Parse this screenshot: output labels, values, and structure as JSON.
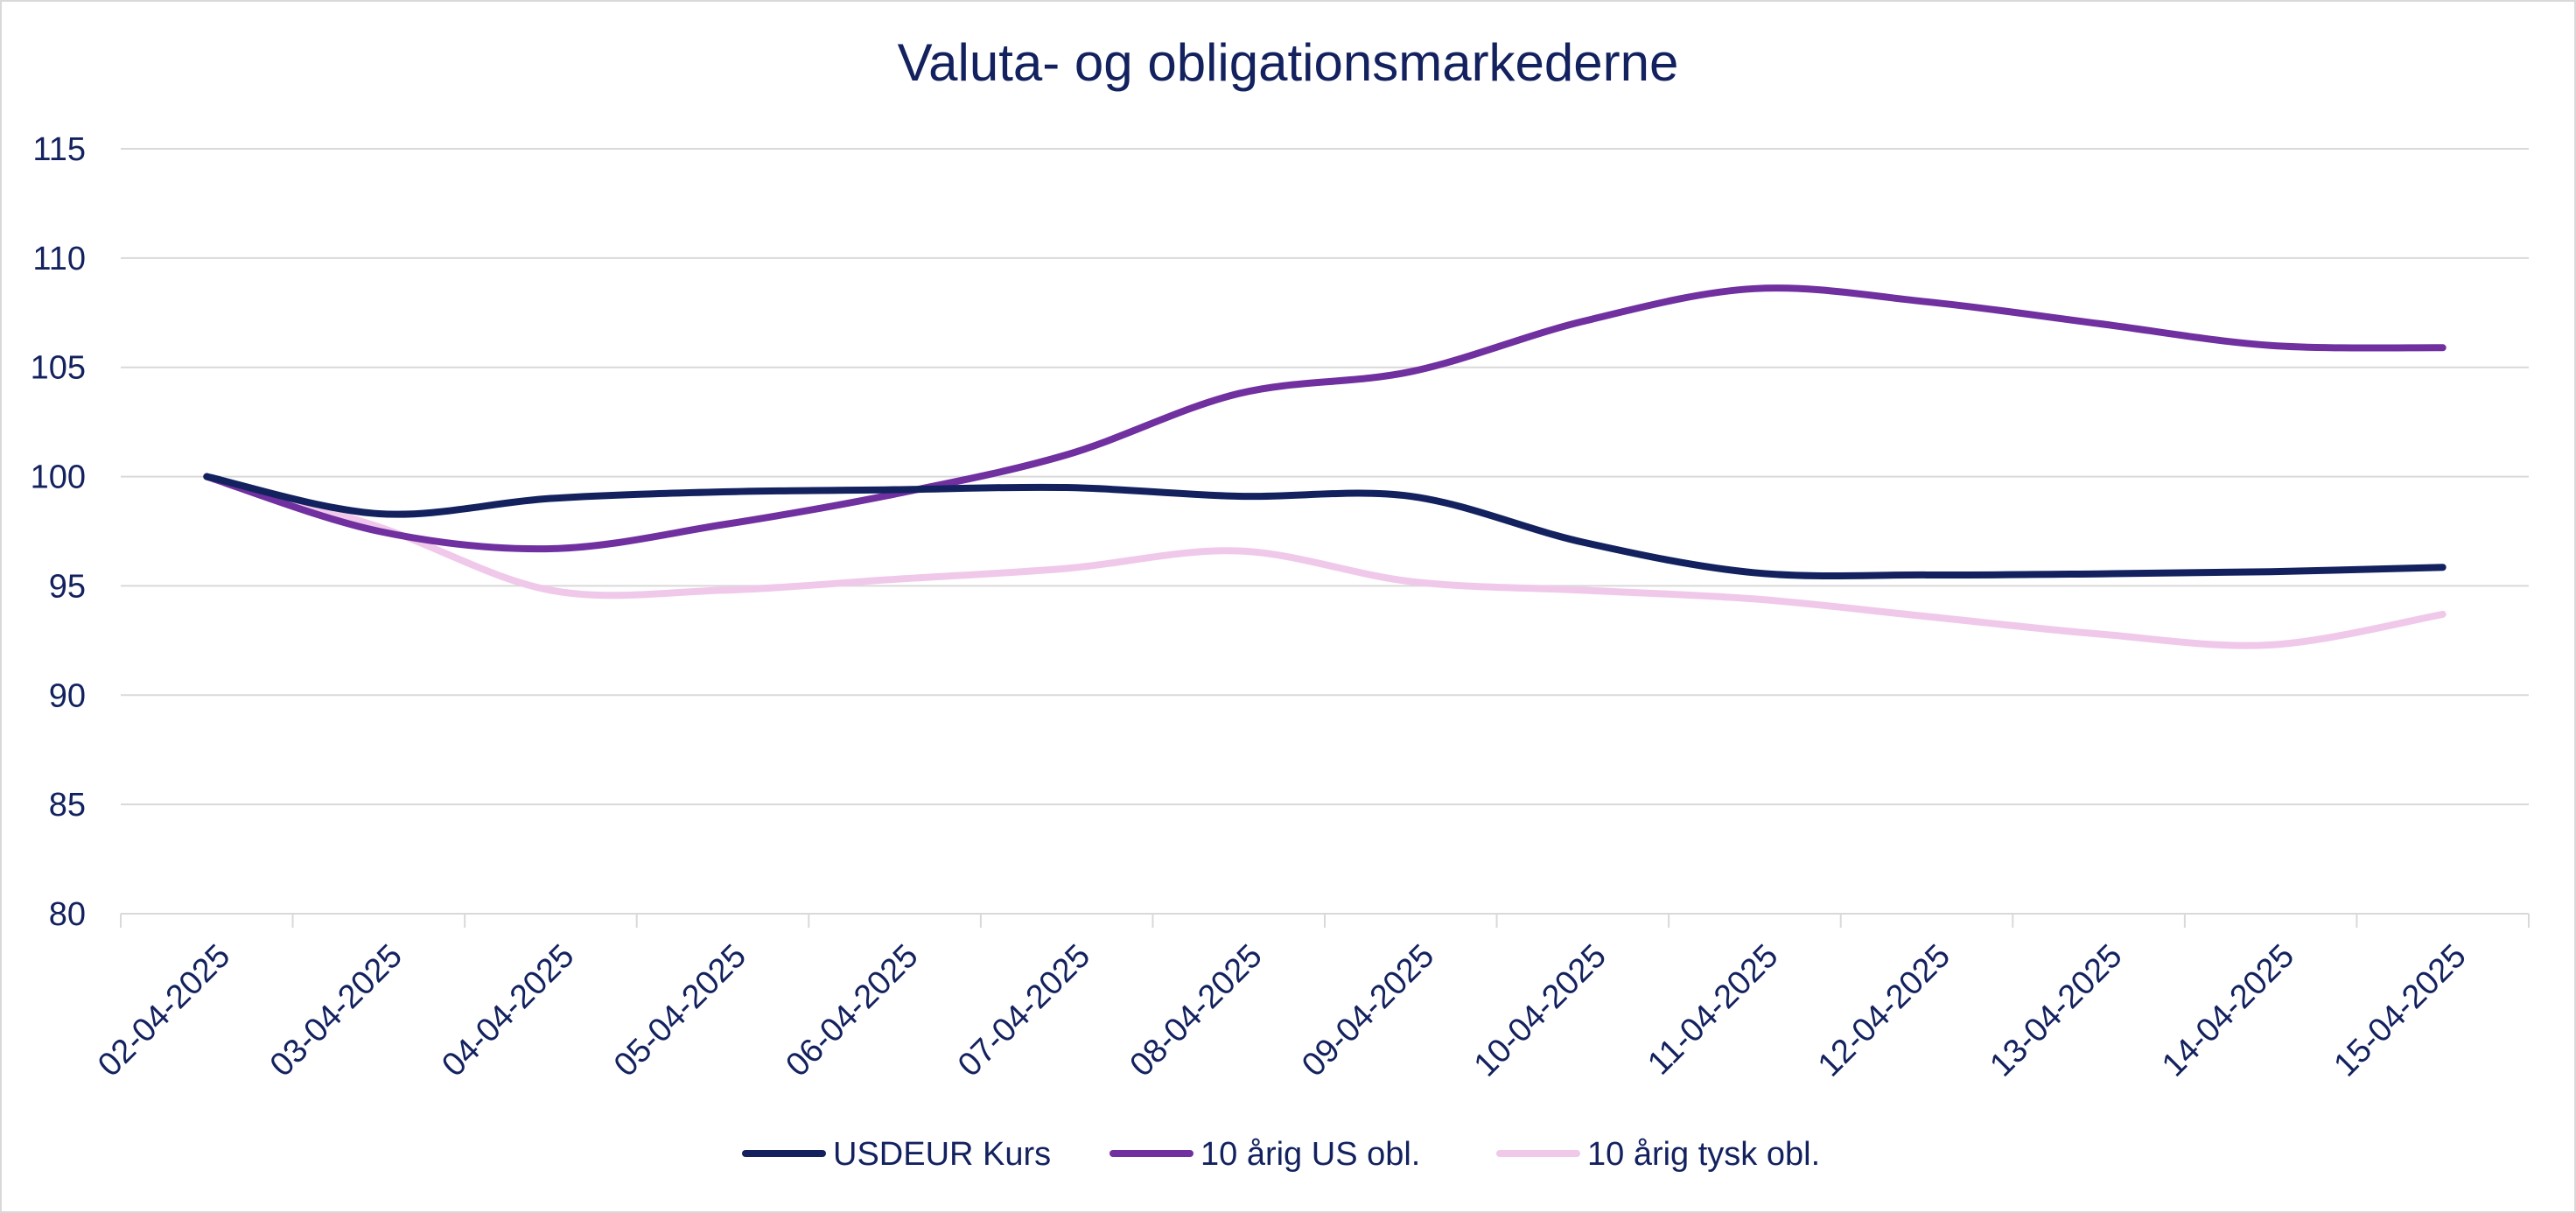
{
  "chart_data": {
    "type": "line",
    "title": "Valuta- og obligationsmarkederne",
    "xlabel": "",
    "ylabel": "",
    "x": [
      "02-04-2025",
      "03-04-2025",
      "04-04-2025",
      "05-04-2025",
      "06-04-2025",
      "07-04-2025",
      "08-04-2025",
      "09-04-2025",
      "10-04-2025",
      "11-04-2025",
      "12-04-2025",
      "13-04-2025",
      "14-04-2025",
      "15-04-2025"
    ],
    "ylim": [
      80,
      115
    ],
    "yticks": [
      80,
      85,
      90,
      95,
      100,
      105,
      110,
      115
    ],
    "grid": true,
    "legend_position": "bottom",
    "series": [
      {
        "name": "USDEUR Kurs",
        "color": "#13225f",
        "values": [
          100,
          98.3,
          99.0,
          99.3,
          99.4,
          99.5,
          99.1,
          99.1,
          97.0,
          95.6,
          95.5,
          95.55,
          95.65,
          95.85
        ]
      },
      {
        "name": "10 årig US obl.",
        "color": "#7030a0",
        "values": [
          100,
          97.5,
          96.7,
          97.8,
          99.2,
          101.0,
          103.8,
          104.8,
          107.1,
          108.6,
          108.0,
          107.0,
          106.0,
          105.9
        ]
      },
      {
        "name": "10 årig tysk obl.",
        "color": "#f0c8ea",
        "values": [
          100,
          97.7,
          94.8,
          94.8,
          95.3,
          95.8,
          96.6,
          95.2,
          94.8,
          94.4,
          93.6,
          92.8,
          92.3,
          93.7
        ]
      }
    ]
  }
}
